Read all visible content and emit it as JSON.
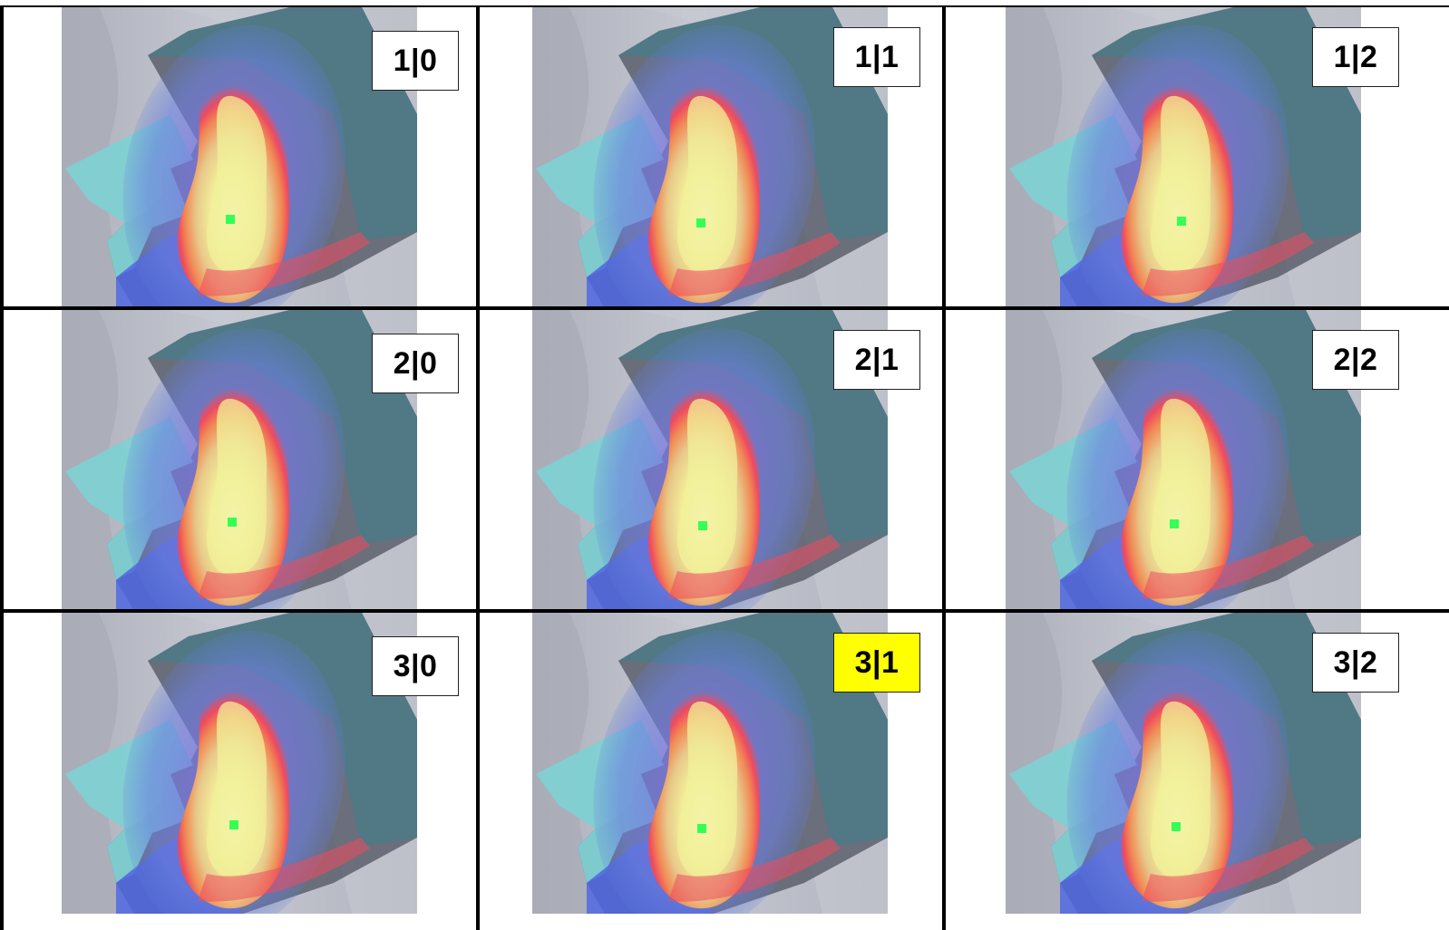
{
  "panels": [
    {
      "label": "1|0",
      "highlighted": false
    },
    {
      "label": "1|1",
      "highlighted": false
    },
    {
      "label": "1|2",
      "highlighted": false
    },
    {
      "label": "2|0",
      "highlighted": false
    },
    {
      "label": "2|1",
      "highlighted": false
    },
    {
      "label": "2|2",
      "highlighted": false
    },
    {
      "label": "3|0",
      "highlighted": false
    },
    {
      "label": "3|1",
      "highlighted": true
    },
    {
      "label": "3|2",
      "highlighted": false
    }
  ],
  "colors": {
    "background_gray": "#b9bcc6",
    "shoulder": "#c9ccd4",
    "teal_plate": "#7fd0d2",
    "dark_plate": "#4d5360",
    "blue_edge": "#4f66e0",
    "heat_red": "#ef4a5e",
    "heat_orange": "#f08a55",
    "heat_yellow": "#f2f09a",
    "heat_core": "#f7fbd0",
    "marker_green": "#33ff55",
    "highlight": "#ffff00",
    "grid_line": "#000000"
  }
}
